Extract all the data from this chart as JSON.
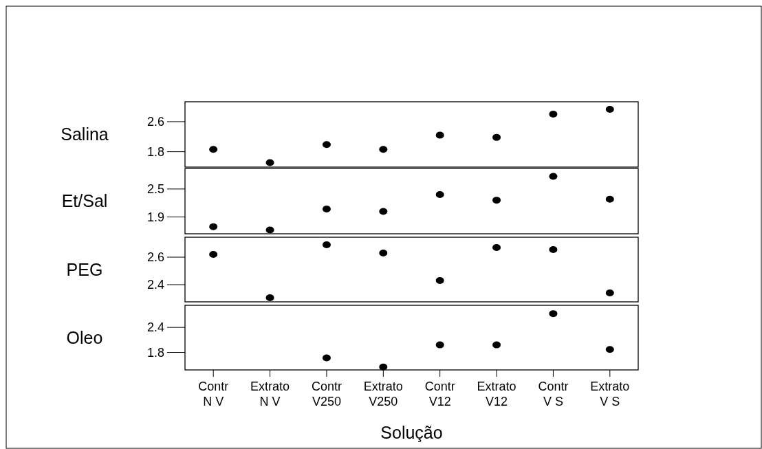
{
  "chart_data": [
    {
      "type": "scatter",
      "ylabel": "Salina",
      "categories": [
        "Contr\nN V",
        "Extrato\nN V",
        "Contr\nV250",
        "Extrato\nV250",
        "Contr\nV12",
        "Extrato\nV12",
        "Contr\nV S",
        "Extrato\nV S"
      ],
      "values": [
        1.86,
        1.51,
        1.99,
        1.86,
        2.24,
        2.18,
        2.8,
        2.93
      ],
      "color": "#000000",
      "marker": "circle",
      "ylim": [
        1.39,
        3.13
      ],
      "yticks": [
        1.8,
        2.6
      ],
      "tick_labels": "y"
    },
    {
      "type": "scatter",
      "ylabel": "Et/Sal",
      "categories": [
        "Contr\nN V",
        "Extrato\nN V",
        "Contr\nV250",
        "Extrato\nV250",
        "Contr\nV12",
        "Extrato\nV12",
        "Contr\nV S",
        "Extrato\nV S"
      ],
      "values": [
        1.69,
        1.62,
        2.07,
        2.02,
        2.38,
        2.26,
        2.77,
        2.28
      ],
      "color": "#000000",
      "marker": "circle",
      "ylim": [
        1.54,
        2.94
      ],
      "yticks": [
        1.9,
        2.5
      ],
      "tick_labels": "y"
    },
    {
      "type": "scatter",
      "ylabel": "PEG",
      "categories": [
        "Contr\nN V",
        "Extrato\nN V",
        "Contr\nV250",
        "Extrato\nV250",
        "Contr\nV12",
        "Extrato\nV12",
        "Contr\nV S",
        "Extrato\nV S"
      ],
      "values": [
        2.62,
        2.305,
        2.69,
        2.63,
        2.43,
        2.67,
        2.655,
        2.34
      ],
      "color": "#000000",
      "marker": "circle",
      "ylim": [
        2.275,
        2.745
      ],
      "yticks": [
        2.4,
        2.6
      ],
      "tick_labels": "y"
    },
    {
      "type": "scatter",
      "ylabel": "Oleo",
      "xlabel": "Solução",
      "categories": [
        "Contr\nN V",
        "Extrato\nN V",
        "Contr\nV250",
        "Extrato\nV250",
        "Contr\nV12",
        "Extrato\nV12",
        "Contr\nV S",
        "Extrato\nV S"
      ],
      "values": [
        null,
        null,
        1.67,
        1.45,
        1.98,
        1.98,
        2.73,
        1.87
      ],
      "color": "#000000",
      "marker": "circle",
      "ylim": [
        1.38,
        2.93
      ],
      "yticks": [
        1.8,
        2.4
      ]
    }
  ]
}
